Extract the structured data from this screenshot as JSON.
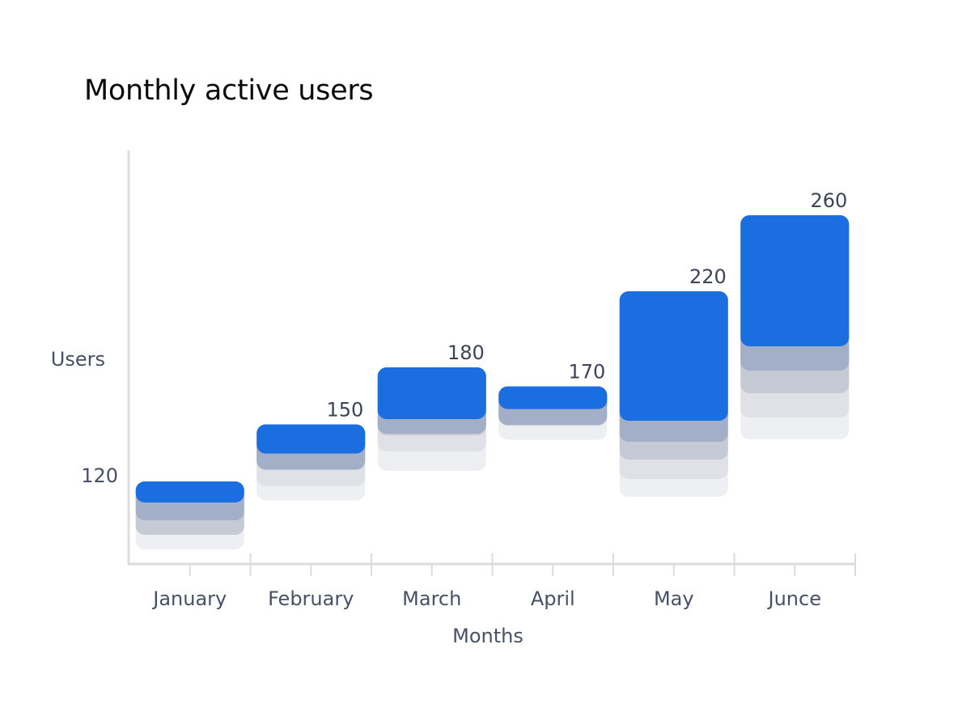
{
  "chart_data": {
    "type": "bar",
    "title": "Monthly active users",
    "xlabel": "Months",
    "ylabel": "Users",
    "categories": [
      "January",
      "February",
      "March",
      "April",
      "May",
      "Junce"
    ],
    "values": [
      120,
      150,
      180,
      170,
      220,
      260
    ],
    "y_tick_labels": [
      "120"
    ],
    "grid": false,
    "legend": "none",
    "colors": {
      "bar": "#1a6ee0",
      "shadow_1": "#a3afc6",
      "shadow_2": "#c6cad4",
      "shadow_3": "#dfe1e6",
      "shadow_4": "#eeeff2",
      "axis": "#dcdcdc"
    }
  }
}
